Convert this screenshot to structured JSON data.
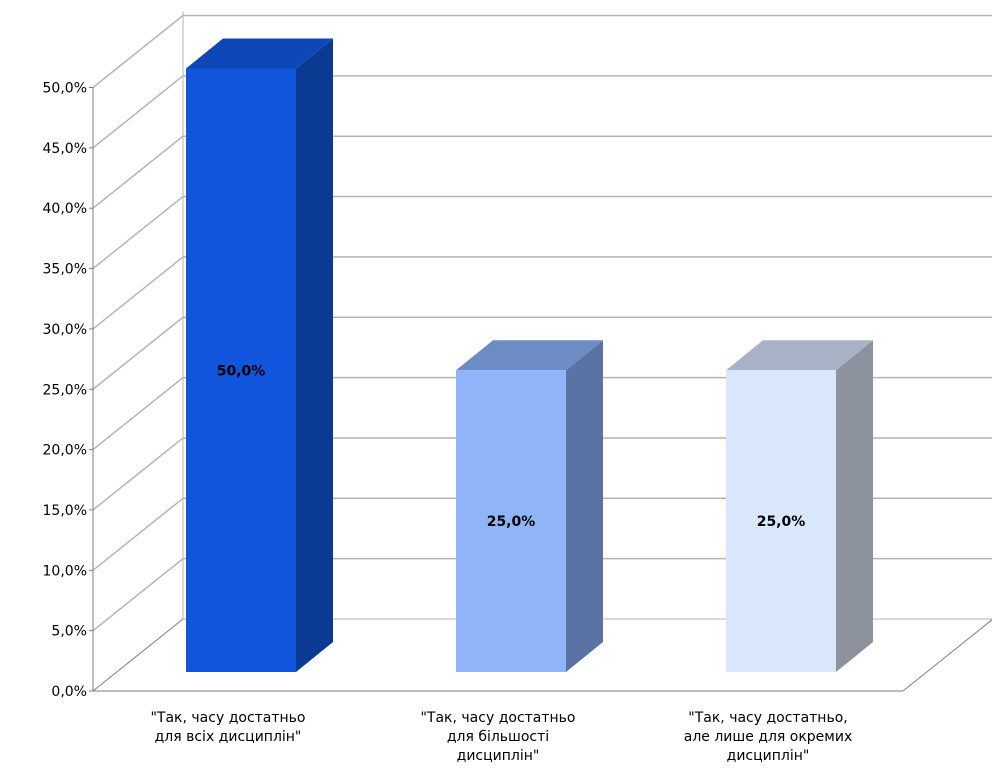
{
  "chart_data": {
    "type": "bar",
    "three_d": true,
    "categories": [
      [
        "\"Так, часу достатньо",
        "для всіх дисциплін\""
      ],
      [
        "\"Так, часу достатньо",
        "для більшості",
        "дисциплін\""
      ],
      [
        "\"Так, часу достатньо,",
        "але лише для окремих",
        "дисциплін\""
      ]
    ],
    "values": [
      50.0,
      25.0,
      25.0
    ],
    "data_labels": [
      "50,0%",
      "25,0%",
      "25,0%"
    ],
    "y_ticks": [
      "0,0%",
      "5,0%",
      "10,0%",
      "15,0%",
      "20,0%",
      "25,0%",
      "30,0%",
      "35,0%",
      "40,0%",
      "45,0%",
      "50,0%"
    ],
    "ylim": [
      0,
      50
    ],
    "grid": true,
    "legend": "none",
    "colors": {
      "bars": [
        {
          "front": "#1155dd",
          "side": "#0a3a92",
          "top": "#0d47b8"
        },
        {
          "front": "#8fb5f8",
          "side": "#5a73a4",
          "top": "#6d8bc4"
        },
        {
          "front": "#d9e7fd",
          "side": "#8c929e",
          "top": "#a8b2c6"
        }
      ],
      "grid": "#b4b4b4",
      "axis": "#7f7f7f"
    }
  }
}
